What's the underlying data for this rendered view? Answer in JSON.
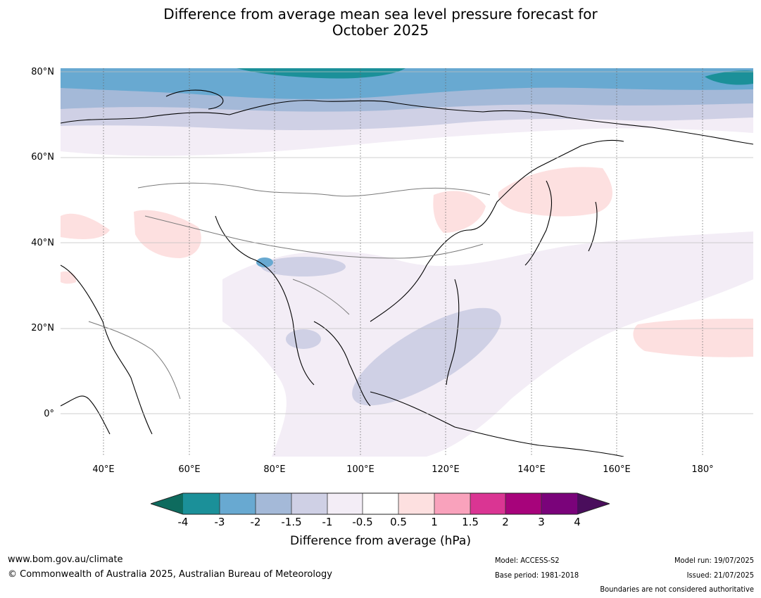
{
  "title": {
    "line1": "Difference from average mean sea level pressure forecast for",
    "line2": "October 2025"
  },
  "map": {
    "lat_labels": [
      "80°N",
      "60°N",
      "40°N",
      "20°N",
      "0°"
    ],
    "lon_labels": [
      "40°E",
      "60°E",
      "80°E",
      "100°E",
      "120°E",
      "140°E",
      "160°E",
      "180°"
    ],
    "extent": {
      "lon_min": 30,
      "lon_max": 191,
      "lat_min": -10,
      "lat_max": 81
    }
  },
  "colorbar": {
    "ticks": [
      "-4",
      "-3",
      "-2",
      "-1.5",
      "-1",
      "-0.5",
      "0.5",
      "1",
      "1.5",
      "2",
      "3",
      "4"
    ],
    "under_color": "#0e6b5e",
    "over_color": "#4a0e5c",
    "colors": [
      "#1b9099",
      "#68a9d1",
      "#a4b9d8",
      "#cfd0e5",
      "#f3edf6",
      "#ffffff",
      "#fde0e0",
      "#f9a2bc",
      "#da3593",
      "#a7037b",
      "#7a037a"
    ],
    "title": "Difference from average (hPa)"
  },
  "footer": {
    "url": "www.bom.gov.au/climate",
    "copyright": "© Commonwealth of Australia 2025, Australian Bureau of Meteorology",
    "model": "Model: ACCESS-S2",
    "base_period": "Base period: 1981-2018",
    "model_run": "Model run: 19/07/2025",
    "issued": "Issued: 21/07/2025",
    "disclaimer": "Boundaries are not considered authoritative"
  }
}
